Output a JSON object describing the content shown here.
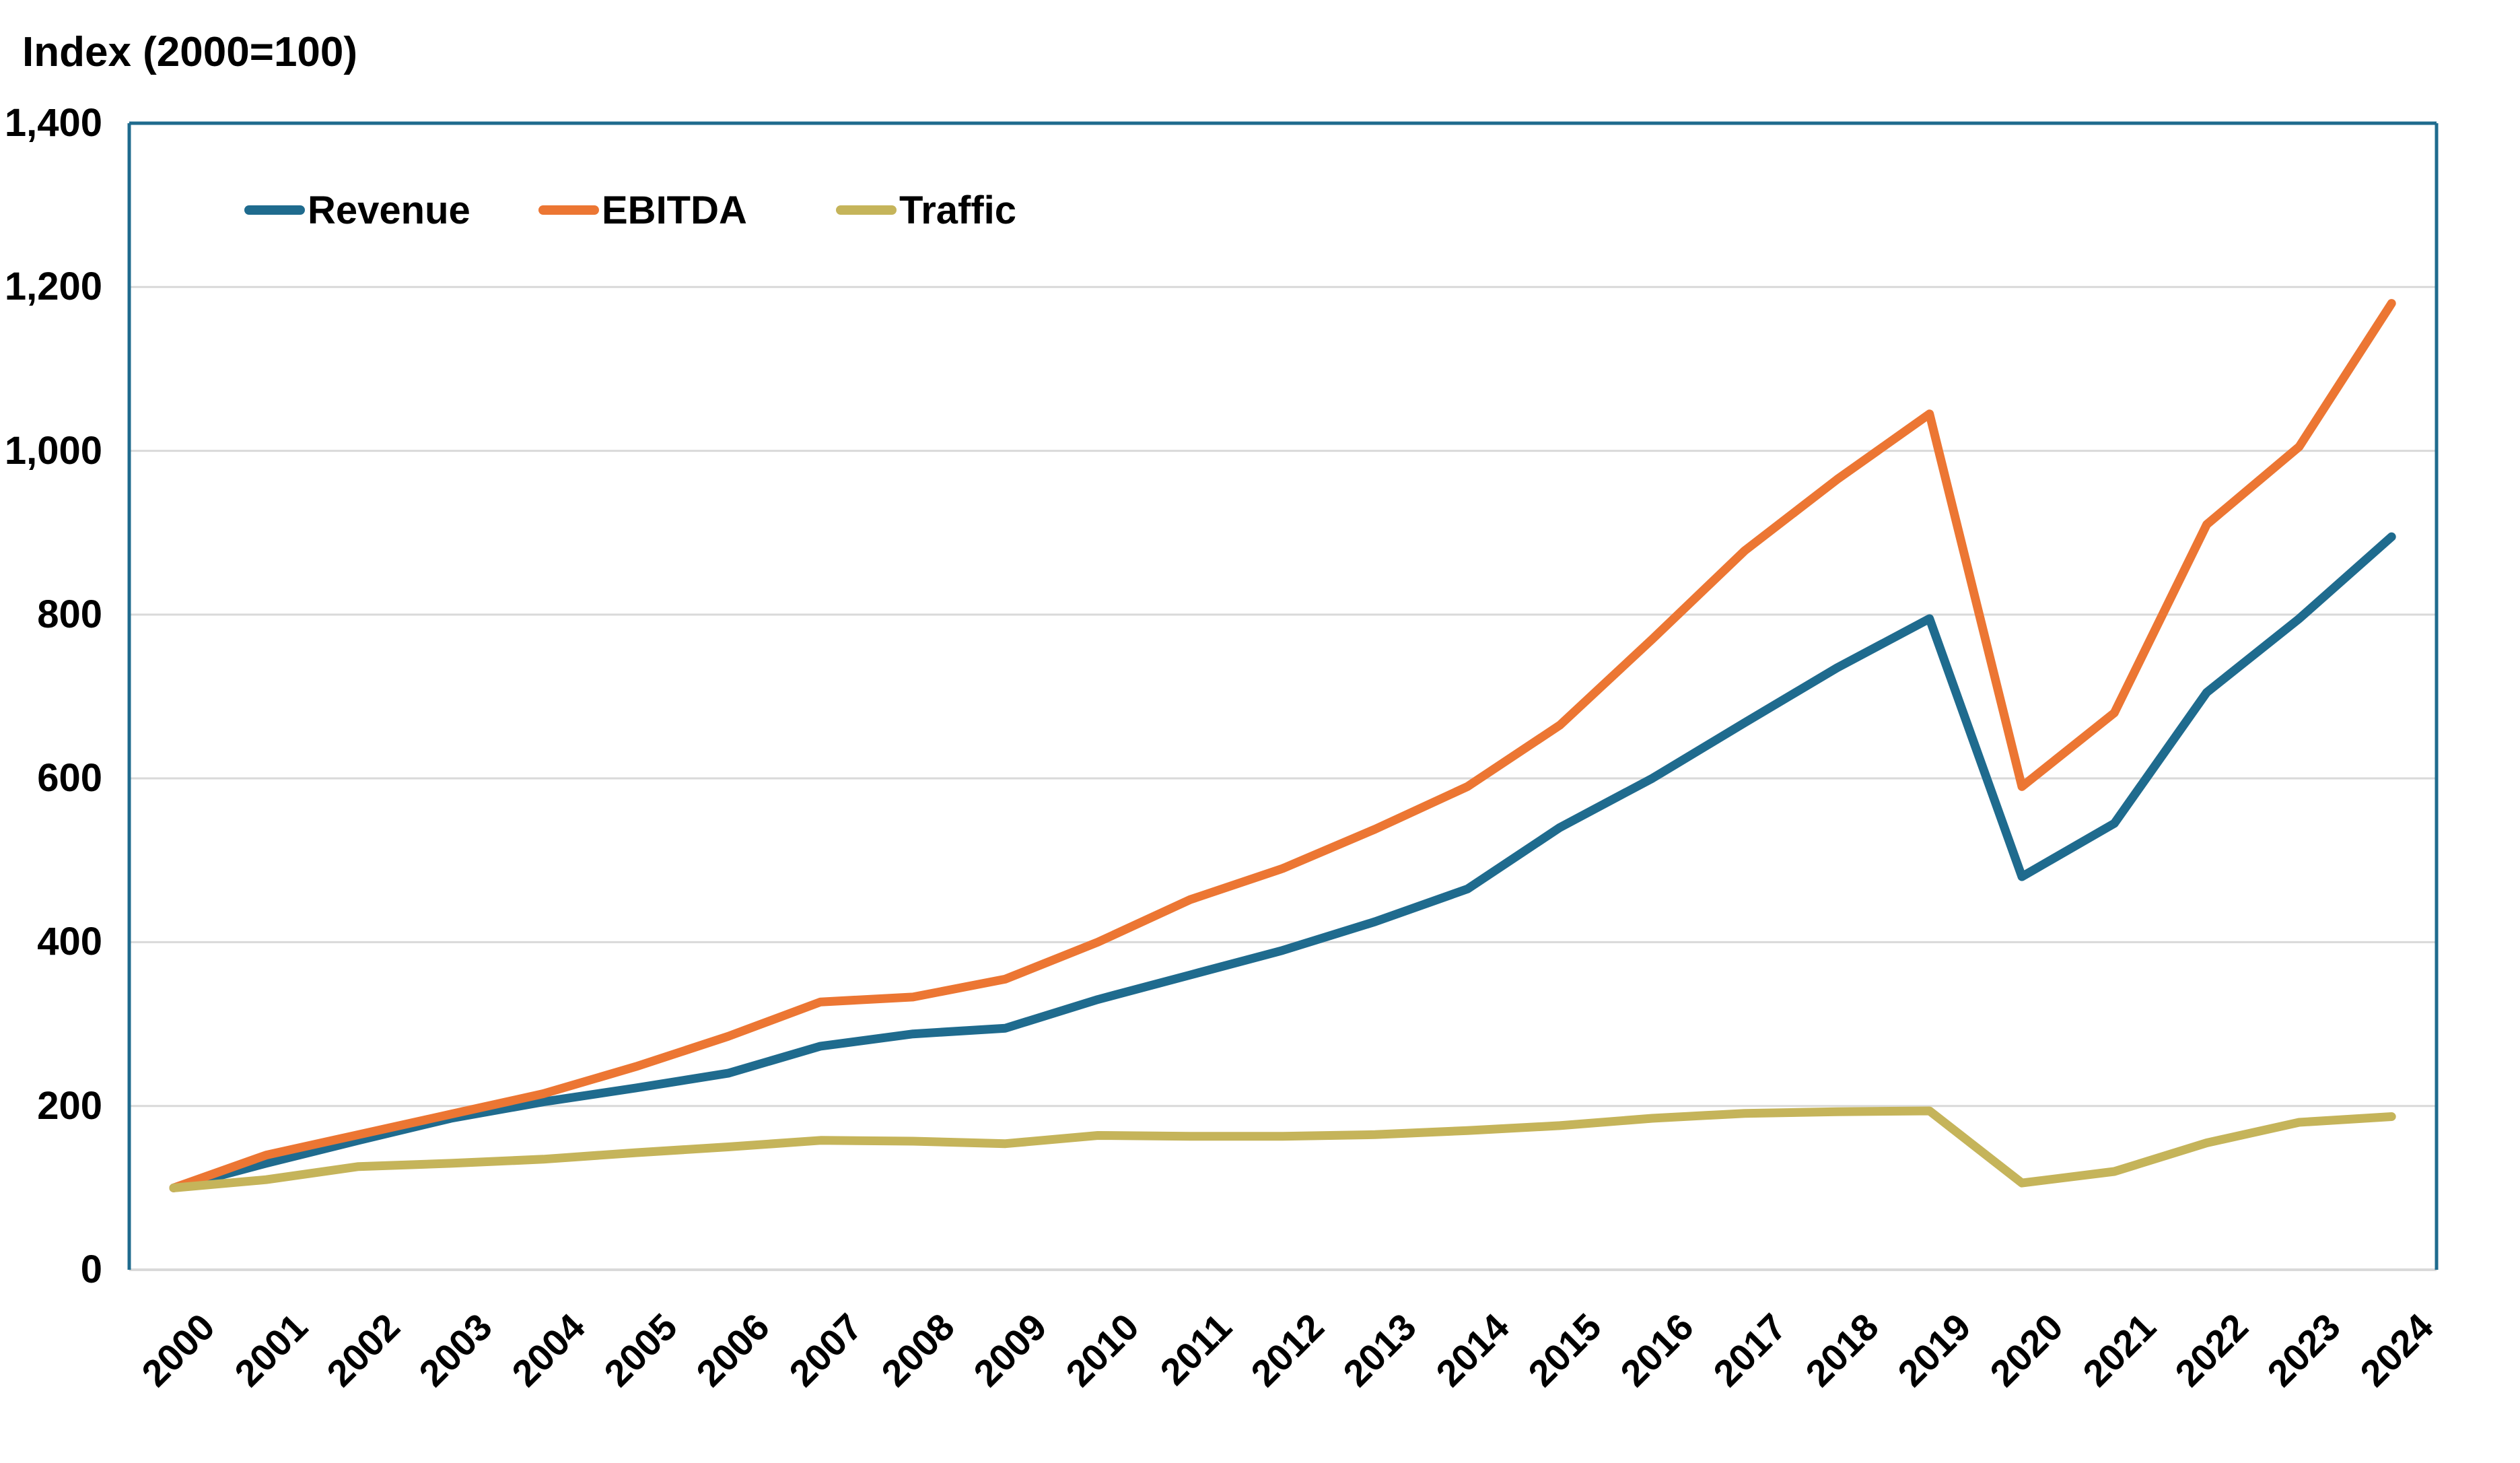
{
  "title": "Index (2000=100)",
  "colors": {
    "revenue": "#1F6B8E",
    "ebitda": "#EC7633",
    "traffic": "#C5B45A",
    "axis_border": "#1F6B8E",
    "gridline": "#D9D9D9",
    "text": "#000000",
    "background": "#FFFFFF"
  },
  "chart_data": {
    "type": "line",
    "title": "Index (2000=100)",
    "categories": [
      "2000",
      "2001",
      "2002",
      "2003",
      "2004",
      "2005",
      "2006",
      "2007",
      "2008",
      "2009",
      "2010",
      "2011",
      "2012",
      "2013",
      "2014",
      "2015",
      "2016",
      "2017",
      "2018",
      "2019",
      "2020",
      "2021",
      "2022",
      "2023",
      "2024"
    ],
    "series": [
      {
        "name": "Revenue",
        "color": "#1F6B8E",
        "values": [
          100,
          130,
          158,
          185,
          205,
          222,
          240,
          273,
          288,
          295,
          330,
          360,
          390,
          425,
          465,
          540,
          600,
          668,
          735,
          795,
          480,
          545,
          705,
          795,
          895
        ]
      },
      {
        "name": "EBITDA",
        "color": "#EC7633",
        "values": [
          100,
          140,
          165,
          190,
          215,
          248,
          285,
          327,
          333,
          355,
          400,
          452,
          490,
          538,
          590,
          665,
          770,
          878,
          965,
          1045,
          590,
          680,
          910,
          1005,
          1180
        ]
      },
      {
        "name": "Traffic",
        "color": "#C5B45A",
        "values": [
          100,
          110,
          126,
          130,
          135,
          143,
          150,
          158,
          157,
          154,
          164,
          163,
          163,
          165,
          170,
          176,
          185,
          191,
          193,
          194,
          106,
          120,
          155,
          180,
          187
        ]
      }
    ],
    "xlabel": "",
    "ylabel": "Index (2000=100)",
    "ylim": [
      0,
      1400
    ],
    "ytick_step": 200,
    "ytick_labels": [
      "0",
      "200",
      "400",
      "600",
      "800",
      "1,000",
      "1,200",
      "1,400"
    ],
    "grid": "horizontal-only",
    "legend_position": "top-left-inside"
  }
}
